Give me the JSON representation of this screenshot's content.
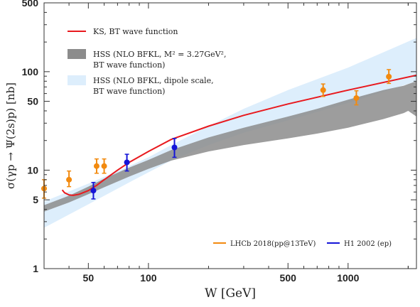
{
  "chart_data": {
    "type": "scatter",
    "xlabel": "W [GeV]",
    "ylabel": "σ(γp → Ψ(2s)p) [nb]",
    "xlim": [
      30,
      2200
    ],
    "ylim": [
      1,
      500
    ],
    "xscale": "log",
    "yscale": "log",
    "xticks": [
      {
        "v": 50,
        "label": "50"
      },
      {
        "v": 100,
        "label": "100"
      },
      {
        "v": 500,
        "label": "500"
      },
      {
        "v": 1000,
        "label": "1000"
      }
    ],
    "yticks": [
      {
        "v": 1,
        "label": "1"
      },
      {
        "v": 5,
        "label": "5"
      },
      {
        "v": 10,
        "label": "10"
      },
      {
        "v": 50,
        "label": "50"
      },
      {
        "v": 100,
        "label": "100"
      },
      {
        "v": 500,
        "label": "500"
      }
    ],
    "series": [
      {
        "name": "KS, BT wave function",
        "kind": "line",
        "color": "#e8191e",
        "x": [
          37,
          38,
          40,
          42,
          45,
          50,
          55,
          60,
          70,
          80,
          100,
          130,
          200,
          300,
          500,
          1000,
          2200
        ],
        "y": [
          6.3,
          5.9,
          5.6,
          5.55,
          5.7,
          6.2,
          7.0,
          8.0,
          10.0,
          12.0,
          15.5,
          20.5,
          28.0,
          36.0,
          47.0,
          65.0,
          92.0
        ]
      },
      {
        "name": "HSS (NLO BFKL, M² = 3.27GeV², BT wave function)",
        "kind": "band",
        "color": "#8c8c8c",
        "x": [
          30,
          40,
          50,
          60,
          80,
          100,
          130,
          200,
          300,
          500,
          700,
          1000,
          1500,
          1900,
          2000,
          2200
        ],
        "lower": [
          3.8,
          4.7,
          5.7,
          6.7,
          8.6,
          10.3,
          12.5,
          15.5,
          18.0,
          21.0,
          23.5,
          27.0,
          33.0,
          38.0,
          40.0,
          35.0
        ],
        "upper": [
          4.4,
          5.5,
          6.8,
          8.2,
          10.6,
          12.7,
          16.0,
          21.5,
          27.0,
          35.0,
          42.0,
          52.0,
          65.0,
          72.0,
          75.0,
          80.0
        ]
      },
      {
        "name": "HSS (NLO BFKL, dipole scale, BT wave function)",
        "kind": "band",
        "color": "#ddeefc",
        "x": [
          30,
          50,
          80,
          100,
          130,
          200,
          300,
          500,
          1000,
          2200
        ],
        "lower": [
          2.6,
          4.5,
          7.5,
          9.5,
          12.5,
          18.0,
          24.0,
          32.0,
          48.0,
          80.0
        ],
        "upper": [
          4.8,
          7.3,
          11.0,
          13.5,
          18.0,
          28.0,
          42.0,
          65.0,
          110.0,
          220.0
        ]
      },
      {
        "name": "LHCb 2018(pp@13TeV)",
        "kind": "points",
        "color": "#f28a0f",
        "x": [
          30,
          40,
          55,
          60,
          750,
          1100,
          1600
        ],
        "y": [
          6.5,
          8.0,
          11.0,
          11.0,
          65.0,
          54.0,
          89.0
        ],
        "ylo": [
          5.2,
          6.8,
          9.3,
          9.3,
          56.0,
          46.0,
          76.0
        ],
        "yhi": [
          8.0,
          9.8,
          13.0,
          13.0,
          75.0,
          64.0,
          105.0
        ]
      },
      {
        "name": "H1 2002 (ep)",
        "kind": "points",
        "color": "#1414d8",
        "x": [
          53,
          78,
          135
        ],
        "y": [
          6.2,
          12.0,
          17.0
        ],
        "ylo": [
          5.1,
          9.8,
          13.5
        ],
        "yhi": [
          7.5,
          14.5,
          21.0
        ]
      }
    ],
    "legend_top": [
      {
        "series": 0,
        "lines": [
          "KS, BT wave function"
        ]
      },
      {
        "series": 1,
        "lines": [
          "HSS (NLO BFKL, M² = 3.27GeV²,",
          "BT wave function)"
        ]
      },
      {
        "series": 2,
        "lines": [
          "HSS (NLO BFKL, dipole scale,",
          "BT wave function)"
        ]
      }
    ],
    "legend_bottom": [
      {
        "series": 3,
        "label": "LHCb 2018(pp@13TeV)"
      },
      {
        "series": 4,
        "label": "H1 2002 (ep)"
      }
    ]
  }
}
